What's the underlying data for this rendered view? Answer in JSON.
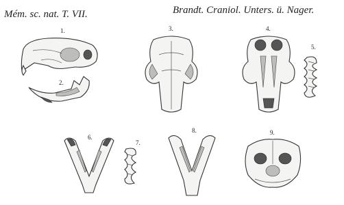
{
  "header": {
    "left": "Mém. sc. nat. T. VII.",
    "right": "Brandt. Craniol. Unters. ü. Nager."
  },
  "figures": [
    {
      "label": "1."
    },
    {
      "label": "2."
    },
    {
      "label": "3."
    },
    {
      "label": "4."
    },
    {
      "label": "5."
    },
    {
      "label": "6."
    },
    {
      "label": "7."
    },
    {
      "label": "8."
    },
    {
      "label": "9."
    }
  ]
}
